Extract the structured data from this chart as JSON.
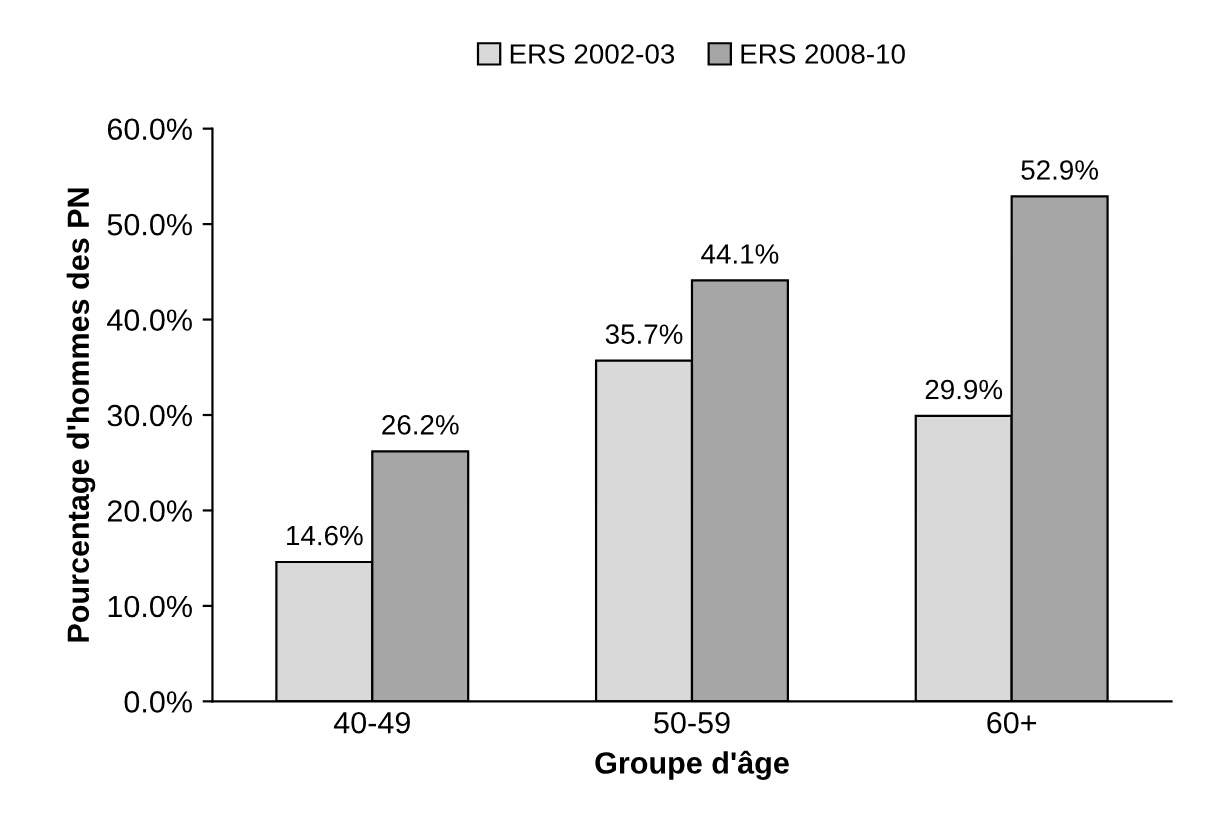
{
  "chart_data": {
    "type": "bar",
    "xlabel": "Groupe d'âge",
    "ylabel": "Pourcentage d'hommes des PN",
    "categories": [
      "40-49",
      "50-59",
      "60+"
    ],
    "series": [
      {
        "name": "ERS 2002-03",
        "color": "#d9d9d9",
        "values": [
          14.6,
          35.7,
          29.9
        ],
        "value_labels": [
          "14.6%",
          "35.7%",
          "29.9%"
        ]
      },
      {
        "name": "ERS 2008-10",
        "color": "#a6a6a6",
        "values": [
          26.2,
          44.1,
          52.9
        ],
        "value_labels": [
          "26.2%",
          "44.1%",
          "52.9%"
        ]
      }
    ],
    "ylim": [
      0,
      60
    ],
    "yticks": [
      {
        "value": 0,
        "label": "0.0%"
      },
      {
        "value": 10,
        "label": "10.0%"
      },
      {
        "value": 20,
        "label": "20.0%"
      },
      {
        "value": 30,
        "label": "30.0%"
      },
      {
        "value": 40,
        "label": "40.0%"
      },
      {
        "value": 50,
        "label": "50.0%"
      },
      {
        "value": 60,
        "label": "60.0%"
      }
    ],
    "grid": false,
    "legend": "top"
  }
}
